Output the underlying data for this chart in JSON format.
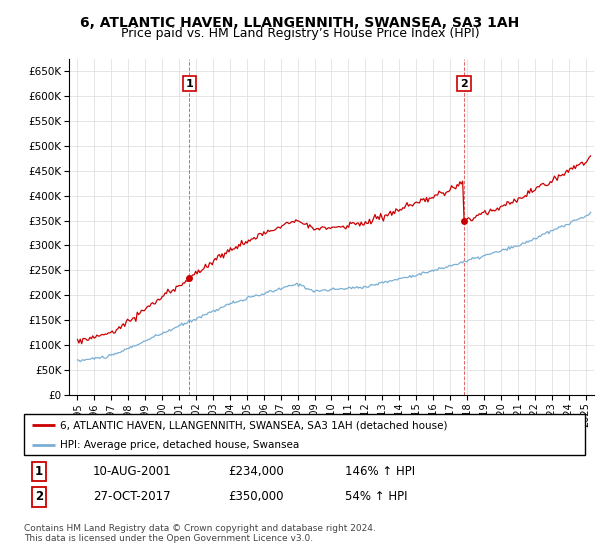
{
  "title": "6, ATLANTIC HAVEN, LLANGENNITH, SWANSEA, SA3 1AH",
  "subtitle": "Price paid vs. HM Land Registry’s House Price Index (HPI)",
  "title_fontsize": 10,
  "subtitle_fontsize": 9,
  "ylim": [
    0,
    675000
  ],
  "yticks": [
    0,
    50000,
    100000,
    150000,
    200000,
    250000,
    300000,
    350000,
    400000,
    450000,
    500000,
    550000,
    600000,
    650000
  ],
  "ytick_labels": [
    "£0",
    "£50K",
    "£100K",
    "£150K",
    "£200K",
    "£250K",
    "£300K",
    "£350K",
    "£400K",
    "£450K",
    "£500K",
    "£550K",
    "£600K",
    "£650K"
  ],
  "xlim_start": 1994.5,
  "xlim_end": 2025.5,
  "xtick_years": [
    1995,
    1996,
    1997,
    1998,
    1999,
    2000,
    2001,
    2002,
    2003,
    2004,
    2005,
    2006,
    2007,
    2008,
    2009,
    2010,
    2011,
    2012,
    2013,
    2014,
    2015,
    2016,
    2017,
    2018,
    2019,
    2020,
    2021,
    2022,
    2023,
    2024,
    2025
  ],
  "hpi_color": "#7bafd4",
  "price_color": "#cc0000",
  "sale1_year": 2001.6,
  "sale1_price": 234000,
  "sale1_label": "1",
  "sale2_year": 2017.82,
  "sale2_price": 350000,
  "sale2_label": "2",
  "legend_line1": "6, ATLANTIC HAVEN, LLANGENNITH, SWANSEA, SA3 1AH (detached house)",
  "legend_line2": "HPI: Average price, detached house, Swansea",
  "table_row1": [
    "1",
    "10-AUG-2001",
    "£234,000",
    "146% ↑ HPI"
  ],
  "table_row2": [
    "2",
    "27-OCT-2017",
    "£350,000",
    "54% ↑ HPI"
  ],
  "footer": "Contains HM Land Registry data © Crown copyright and database right 2024.\nThis data is licensed under the Open Government Licence v3.0.",
  "grid_color": "#e0e0e0"
}
